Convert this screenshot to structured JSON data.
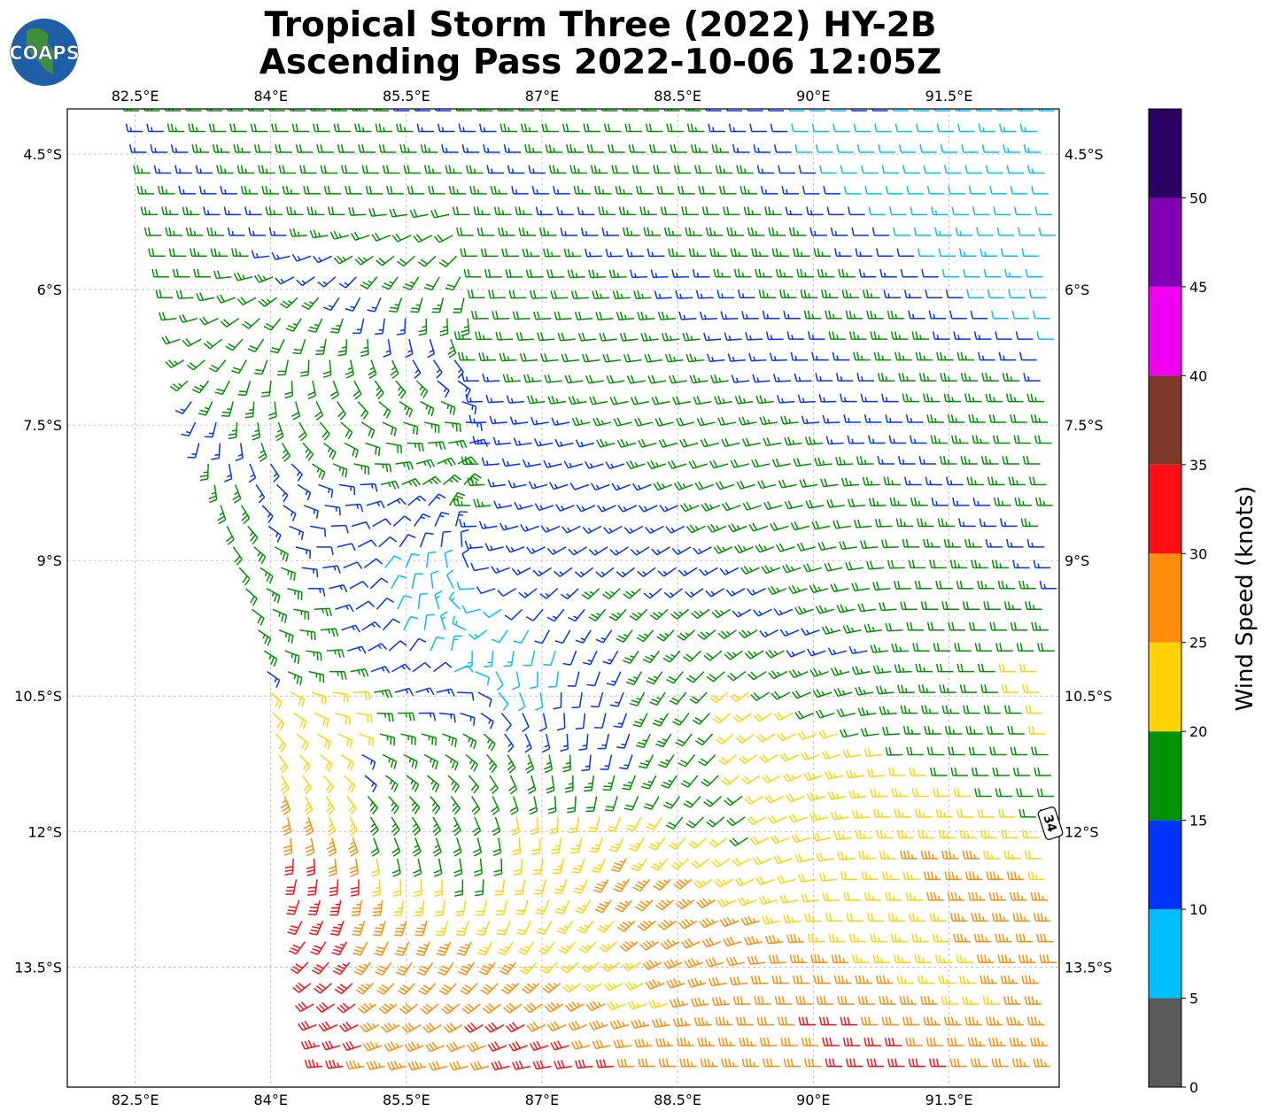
{
  "title": {
    "line1": "Tropical Storm Three (2022) HY-2B",
    "line2": "Ascending Pass 2022-10-06 12:05Z"
  },
  "logo": {
    "text": "COAPS",
    "icon": "globe-icon"
  },
  "map": {
    "lon_ticks": [
      "82.5°E",
      "84°E",
      "85.5°E",
      "87°E",
      "88.5°E",
      "90°E",
      "91.5°E"
    ],
    "lat_ticks": [
      "4.5°S",
      "6°S",
      "7.5°S",
      "9°S",
      "10.5°S",
      "12°S",
      "13.5°S"
    ],
    "lon_range": [
      81.75,
      92.72
    ],
    "lat_range": [
      -14.83,
      -4.0
    ],
    "gridlines": true
  },
  "storm_marker": {
    "label": "34"
  },
  "colorbar": {
    "title": "Wind Speed (knots)",
    "tick_labels": [
      "0",
      "5",
      "10",
      "15",
      "20",
      "25",
      "30",
      "35",
      "40",
      "45",
      "50"
    ],
    "bins": [
      {
        "min": 0,
        "max": 5,
        "color": "#5a5a5a"
      },
      {
        "min": 5,
        "max": 10,
        "color": "#00bfff"
      },
      {
        "min": 10,
        "max": 15,
        "color": "#0033ff"
      },
      {
        "min": 15,
        "max": 20,
        "color": "#009200"
      },
      {
        "min": 20,
        "max": 25,
        "color": "#ffd20a"
      },
      {
        "min": 25,
        "max": 30,
        "color": "#ff8c0a"
      },
      {
        "min": 30,
        "max": 35,
        "color": "#ff0f14"
      },
      {
        "min": 35,
        "max": 40,
        "color": "#7d3a28"
      },
      {
        "min": 40,
        "max": 45,
        "color": "#f000f0"
      },
      {
        "min": 45,
        "max": 50,
        "color": "#8000b4"
      },
      {
        "min": 50,
        "max": 55,
        "color": "#2a0060"
      }
    ]
  },
  "wind_field": {
    "type": "barbs",
    "storm_center": {
      "lon": 86.2,
      "lat": -10.0
    },
    "description_units": "knots"
  }
}
